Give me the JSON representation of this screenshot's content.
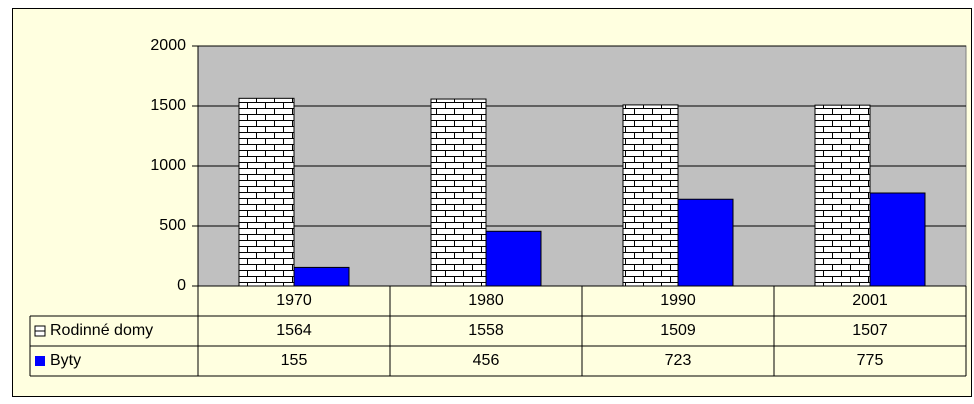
{
  "chart_data": {
    "type": "bar",
    "categories": [
      "1970",
      "1980",
      "1990",
      "2001"
    ],
    "series": [
      {
        "name": "Rodinné domy",
        "color": "#ffffff",
        "pattern": "bricks",
        "values": [
          1564,
          1558,
          1509,
          1507
        ]
      },
      {
        "name": "Byty",
        "color": "#0000ff",
        "values": [
          155,
          456,
          723,
          775
        ]
      }
    ],
    "ylim": [
      0,
      2000
    ],
    "yticks": [
      0,
      500,
      1000,
      1500,
      2000
    ],
    "grid": true,
    "plot_background": "#c0c0c0"
  }
}
